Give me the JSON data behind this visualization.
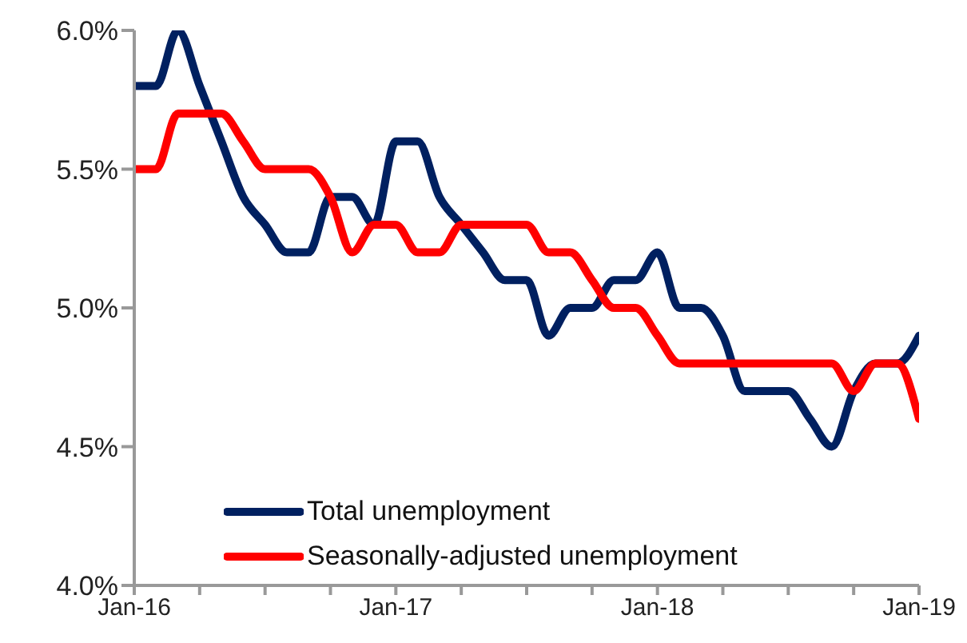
{
  "chart_data": {
    "type": "line",
    "x": [
      "2016-01",
      "2016-02",
      "2016-03",
      "2016-04",
      "2016-05",
      "2016-06",
      "2016-07",
      "2016-08",
      "2016-09",
      "2016-10",
      "2016-11",
      "2016-12",
      "2017-01",
      "2017-02",
      "2017-03",
      "2017-04",
      "2017-05",
      "2017-06",
      "2017-07",
      "2017-08",
      "2017-09",
      "2017-10",
      "2017-11",
      "2017-12",
      "2018-01",
      "2018-02",
      "2018-03",
      "2018-04",
      "2018-05",
      "2018-06",
      "2018-07",
      "2018-08",
      "2018-09",
      "2018-10",
      "2018-11",
      "2018-12",
      "2019-01"
    ],
    "series": [
      {
        "name": "Total unemployment",
        "color": "#002060",
        "values": [
          5.8,
          5.8,
          6.0,
          5.8,
          5.6,
          5.4,
          5.3,
          5.2,
          5.2,
          5.4,
          5.4,
          5.3,
          5.6,
          5.6,
          5.4,
          5.3,
          5.2,
          5.1,
          5.1,
          4.9,
          5.0,
          5.0,
          5.1,
          5.1,
          5.2,
          5.0,
          5.0,
          4.9,
          4.7,
          4.7,
          4.7,
          4.6,
          4.5,
          4.7,
          4.8,
          4.8,
          4.9
        ]
      },
      {
        "name": "Seasonally-adjusted unemployment",
        "color": "#ff0000",
        "values": [
          5.5,
          5.5,
          5.7,
          5.7,
          5.7,
          5.6,
          5.5,
          5.5,
          5.5,
          5.4,
          5.2,
          5.3,
          5.3,
          5.2,
          5.2,
          5.3,
          5.3,
          5.3,
          5.3,
          5.2,
          5.2,
          5.1,
          5.0,
          5.0,
          4.9,
          4.8,
          4.8,
          4.8,
          4.8,
          4.8,
          4.8,
          4.8,
          4.8,
          4.7,
          4.8,
          4.8,
          4.6
        ]
      }
    ],
    "xlim": [
      "2016-01",
      "2019-01"
    ],
    "xticks": [
      {
        "value": "2016-01",
        "label": "Jan-16"
      },
      {
        "value": "2016-04",
        "label": null
      },
      {
        "value": "2016-07",
        "label": null
      },
      {
        "value": "2016-10",
        "label": null
      },
      {
        "value": "2017-01",
        "label": "Jan-17"
      },
      {
        "value": "2017-04",
        "label": null
      },
      {
        "value": "2017-07",
        "label": null
      },
      {
        "value": "2017-10",
        "label": null
      },
      {
        "value": "2018-01",
        "label": "Jan-18"
      },
      {
        "value": "2018-04",
        "label": null
      },
      {
        "value": "2018-07",
        "label": null
      },
      {
        "value": "2018-10",
        "label": null
      },
      {
        "value": "2019-01",
        "label": "Jan-19"
      }
    ],
    "ylim": [
      4.0,
      6.0
    ],
    "yticks": [
      {
        "value": 4.0,
        "label": "4.0%"
      },
      {
        "value": 4.5,
        "label": "4.5%"
      },
      {
        "value": 5.0,
        "label": "5.0%"
      },
      {
        "value": 5.5,
        "label": "5.5%"
      },
      {
        "value": 6.0,
        "label": "6.0%"
      }
    ],
    "grid": false,
    "legend": "bottom left",
    "marker": "none",
    "line_style": "solid"
  }
}
